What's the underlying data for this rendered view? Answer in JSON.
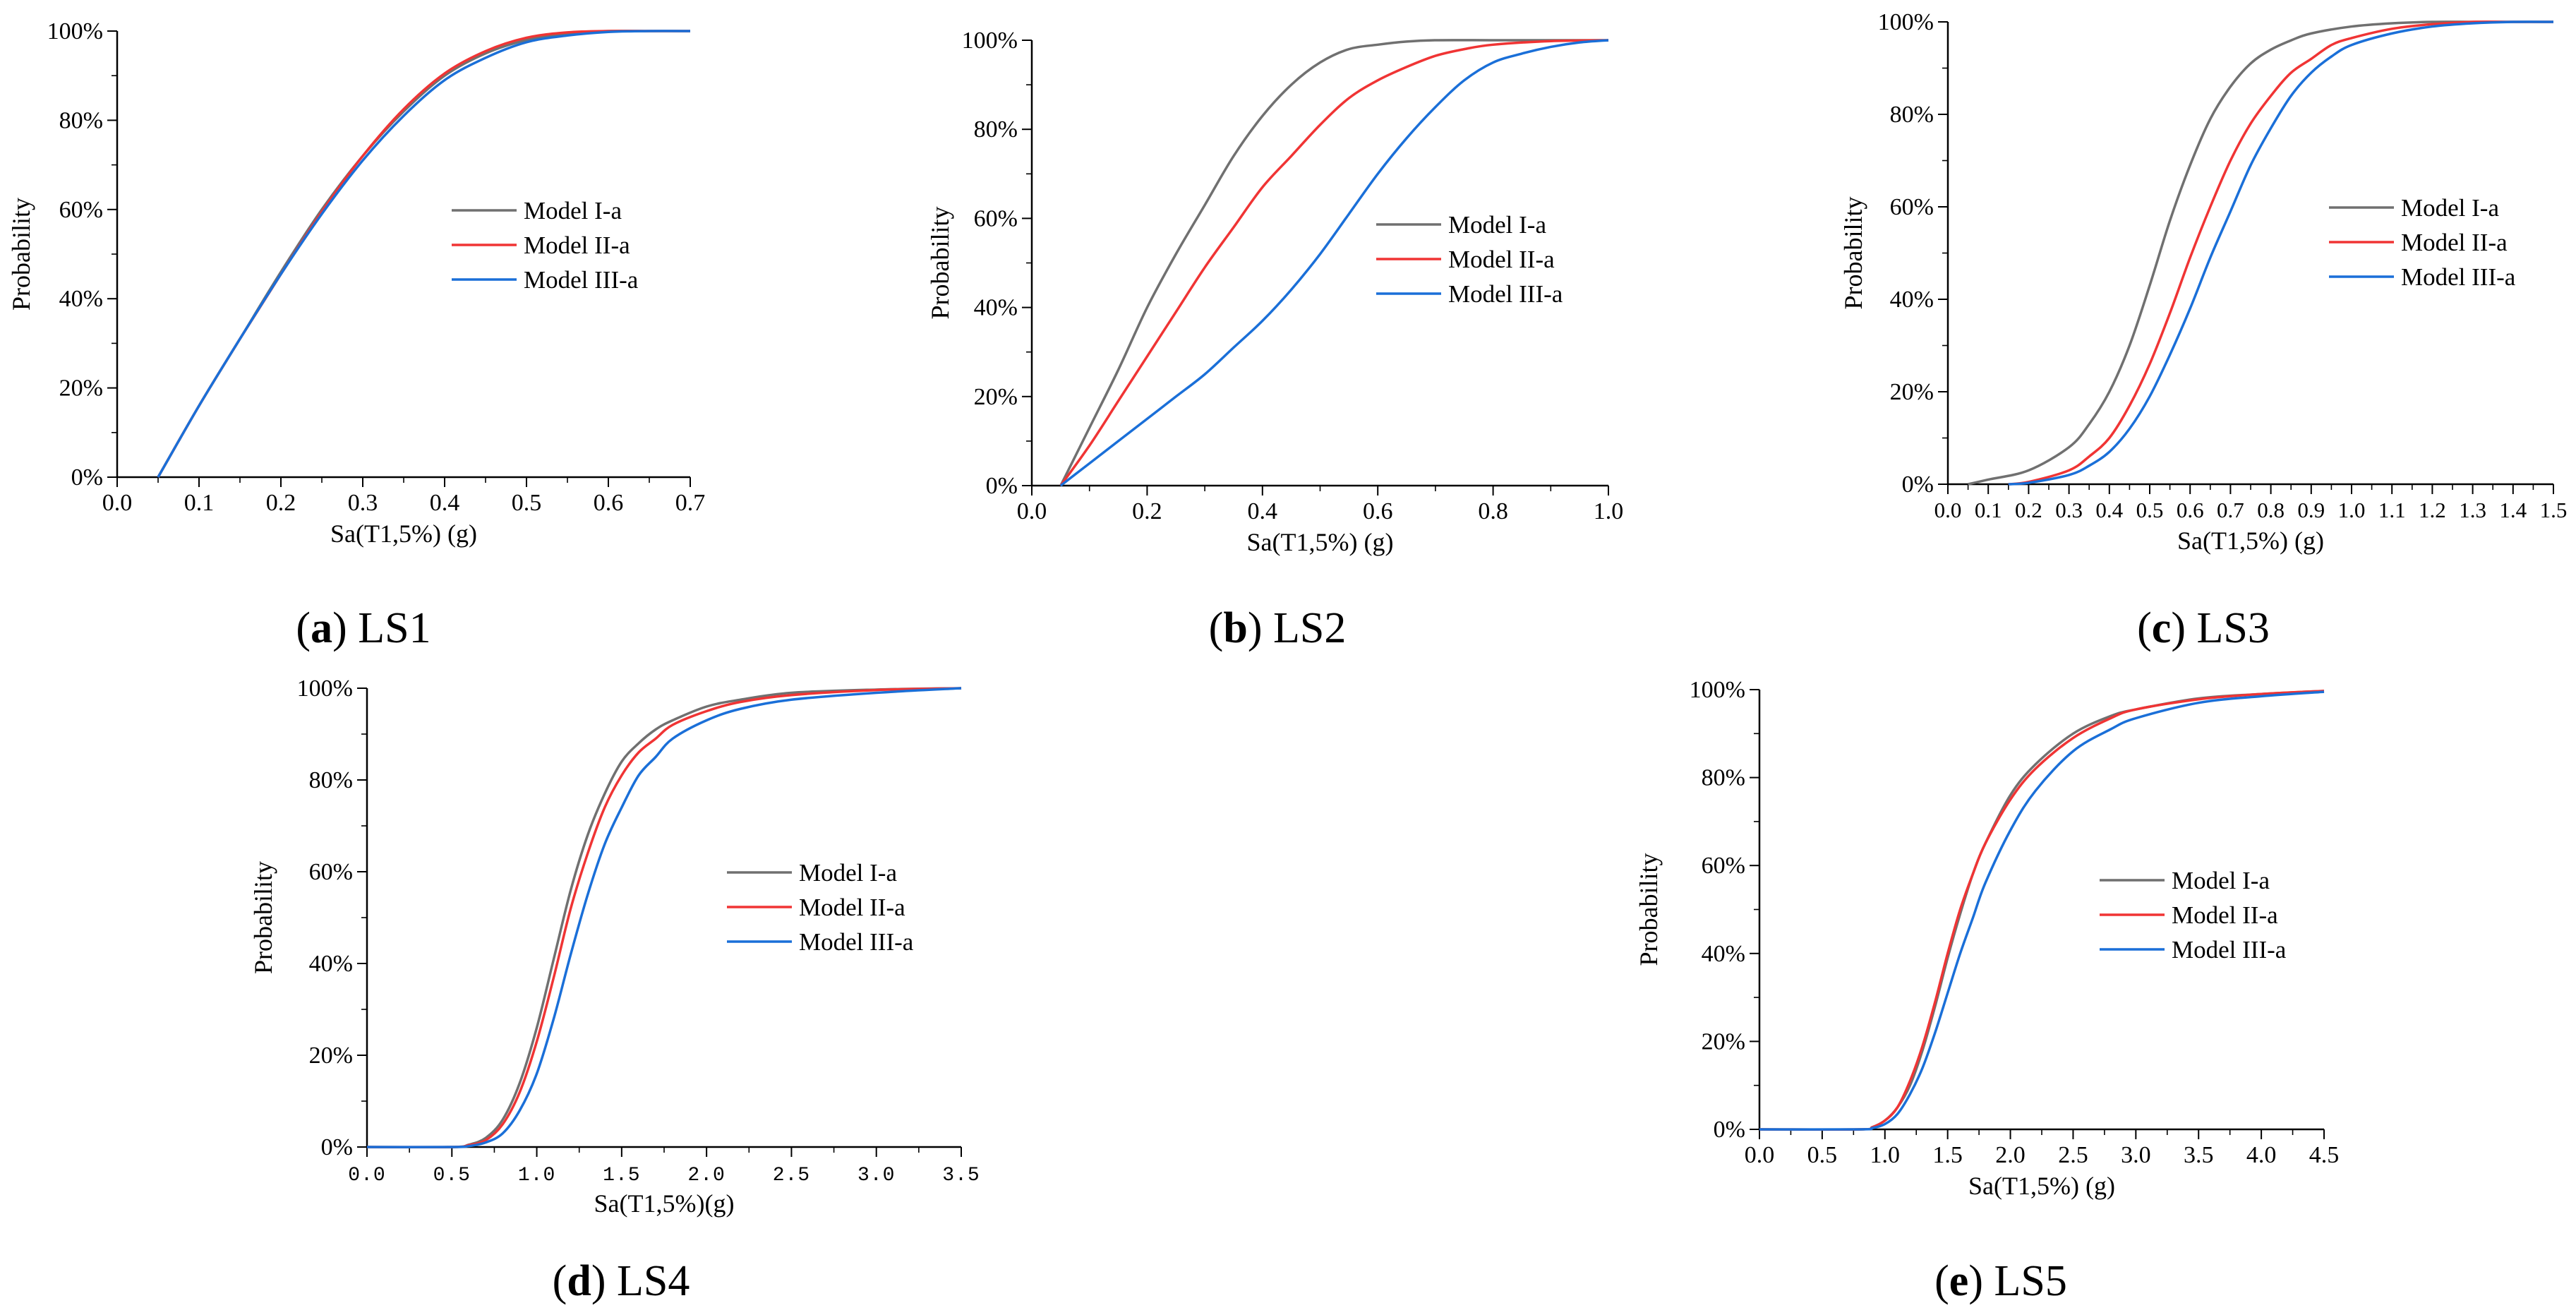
{
  "figure": {
    "colors": {
      "model_i_a": "#707070",
      "model_ii_a": "#f03434",
      "model_iii_a": "#1a6fd8"
    }
  },
  "chart_data": [
    {
      "id": "a",
      "type": "line",
      "caption_letter": "a",
      "caption_text": "LS1",
      "xlabel": "Sa(T1,5%) (g)",
      "ylabel": "Probability",
      "xlim": [
        0,
        0.7
      ],
      "ylim": [
        0,
        1
      ],
      "xticks": [
        "0.0",
        "0.1",
        "0.2",
        "0.3",
        "0.4",
        "0.5",
        "0.6",
        "0.7"
      ],
      "yticks": [
        "0%",
        "20%",
        "40%",
        "60%",
        "80%",
        "100%"
      ],
      "legend_position": "center-right",
      "series": [
        {
          "name": "Model I-a",
          "color_key": "model_i_a",
          "x": [
            0.05,
            0.1,
            0.15,
            0.2,
            0.25,
            0.3,
            0.35,
            0.4,
            0.45,
            0.5,
            0.55,
            0.6,
            0.65,
            0.7
          ],
          "y": [
            0,
            0.16,
            0.31,
            0.46,
            0.6,
            0.72,
            0.82,
            0.9,
            0.95,
            0.98,
            0.995,
            1,
            1,
            1
          ]
        },
        {
          "name": "Model II-a",
          "color_key": "model_ii_a",
          "x": [
            0.05,
            0.1,
            0.15,
            0.2,
            0.25,
            0.3,
            0.35,
            0.4,
            0.45,
            0.5,
            0.55,
            0.6,
            0.65,
            0.7
          ],
          "y": [
            0,
            0.16,
            0.31,
            0.455,
            0.595,
            0.72,
            0.825,
            0.905,
            0.955,
            0.985,
            0.997,
            1,
            1,
            1
          ]
        },
        {
          "name": "Model III-a",
          "color_key": "model_iii_a",
          "x": [
            0.05,
            0.1,
            0.15,
            0.2,
            0.25,
            0.3,
            0.35,
            0.4,
            0.45,
            0.5,
            0.55,
            0.6,
            0.65,
            0.7
          ],
          "y": [
            0,
            0.16,
            0.31,
            0.455,
            0.59,
            0.71,
            0.81,
            0.89,
            0.94,
            0.975,
            0.99,
            0.998,
            1,
            1
          ]
        }
      ]
    },
    {
      "id": "b",
      "type": "line",
      "caption_letter": "b",
      "caption_text": "LS2",
      "xlabel": "Sa(T1,5%) (g)",
      "ylabel": "Probability",
      "xlim": [
        0,
        1.0
      ],
      "ylim": [
        0,
        1
      ],
      "xticks": [
        "0.0",
        "0.2",
        "0.4",
        "0.6",
        "0.8",
        "1.0"
      ],
      "yticks": [
        "0%",
        "20%",
        "40%",
        "60%",
        "80%",
        "100%"
      ],
      "legend_position": "center-right",
      "series": [
        {
          "name": "Model I-a",
          "color_key": "model_i_a",
          "x": [
            0.05,
            0.1,
            0.15,
            0.2,
            0.25,
            0.3,
            0.35,
            0.4,
            0.45,
            0.5,
            0.55,
            0.6,
            0.65,
            0.7,
            0.8,
            0.9,
            1.0
          ],
          "y": [
            0,
            0.13,
            0.26,
            0.4,
            0.52,
            0.63,
            0.74,
            0.83,
            0.9,
            0.95,
            0.98,
            0.99,
            0.997,
            1,
            1,
            1,
            1
          ]
        },
        {
          "name": "Model II-a",
          "color_key": "model_ii_a",
          "x": [
            0.05,
            0.1,
            0.15,
            0.2,
            0.25,
            0.3,
            0.35,
            0.4,
            0.45,
            0.5,
            0.55,
            0.6,
            0.65,
            0.7,
            0.75,
            0.8,
            0.9,
            1.0
          ],
          "y": [
            0,
            0.09,
            0.19,
            0.29,
            0.39,
            0.49,
            0.58,
            0.67,
            0.74,
            0.81,
            0.87,
            0.91,
            0.94,
            0.965,
            0.98,
            0.99,
            0.998,
            1
          ]
        },
        {
          "name": "Model III-a",
          "color_key": "model_iii_a",
          "x": [
            0.05,
            0.1,
            0.15,
            0.2,
            0.25,
            0.3,
            0.35,
            0.4,
            0.45,
            0.5,
            0.55,
            0.6,
            0.65,
            0.7,
            0.75,
            0.8,
            0.85,
            0.9,
            0.95,
            1.0
          ],
          "y": [
            0,
            0.05,
            0.1,
            0.15,
            0.2,
            0.25,
            0.31,
            0.37,
            0.44,
            0.52,
            0.61,
            0.7,
            0.78,
            0.85,
            0.91,
            0.95,
            0.97,
            0.985,
            0.995,
            1
          ]
        }
      ]
    },
    {
      "id": "c",
      "type": "line",
      "caption_letter": "c",
      "caption_text": "LS3",
      "xlabel": "Sa(T1,5%) (g)",
      "ylabel": "Probability",
      "xlim": [
        0,
        1.5
      ],
      "ylim": [
        0,
        1
      ],
      "xticks": [
        "0.0",
        "0.1",
        "0.2",
        "0.3",
        "0.4",
        "0.5",
        "0.6",
        "0.7",
        "0.8",
        "0.9",
        "1.0",
        "1.1",
        "1.2",
        "1.3",
        "1.4",
        "1.5"
      ],
      "extra_xtick_label": "0",
      "yticks": [
        "0%",
        "20%",
        "40%",
        "60%",
        "80%",
        "100%"
      ],
      "legend_position": "center-right",
      "series": [
        {
          "name": "Model I-a",
          "color_key": "model_i_a",
          "x": [
            0.05,
            0.1,
            0.2,
            0.3,
            0.35,
            0.4,
            0.45,
            0.5,
            0.55,
            0.6,
            0.65,
            0.7,
            0.75,
            0.8,
            0.85,
            0.9,
            1.0,
            1.1,
            1.2,
            1.3,
            1.4,
            1.5
          ],
          "y": [
            0,
            0.01,
            0.03,
            0.08,
            0.13,
            0.2,
            0.3,
            0.43,
            0.57,
            0.69,
            0.79,
            0.86,
            0.91,
            0.94,
            0.96,
            0.975,
            0.99,
            0.997,
            1,
            1,
            1,
            1
          ]
        },
        {
          "name": "Model II-a",
          "color_key": "model_ii_a",
          "x": [
            0.15,
            0.2,
            0.3,
            0.35,
            0.4,
            0.45,
            0.5,
            0.55,
            0.6,
            0.65,
            0.7,
            0.75,
            0.8,
            0.85,
            0.9,
            0.95,
            1.0,
            1.1,
            1.2,
            1.3,
            1.4,
            1.5
          ],
          "y": [
            0,
            0.005,
            0.03,
            0.06,
            0.1,
            0.17,
            0.26,
            0.37,
            0.49,
            0.6,
            0.7,
            0.78,
            0.84,
            0.89,
            0.92,
            0.95,
            0.965,
            0.985,
            0.995,
            1,
            1,
            1
          ]
        },
        {
          "name": "Model III-a",
          "color_key": "model_iii_a",
          "x": [
            0.15,
            0.2,
            0.3,
            0.35,
            0.4,
            0.45,
            0.5,
            0.55,
            0.6,
            0.65,
            0.7,
            0.75,
            0.8,
            0.85,
            0.9,
            0.95,
            1.0,
            1.1,
            1.2,
            1.3,
            1.4,
            1.5
          ],
          "y": [
            0,
            0.003,
            0.02,
            0.04,
            0.07,
            0.12,
            0.19,
            0.28,
            0.38,
            0.49,
            0.59,
            0.69,
            0.77,
            0.84,
            0.89,
            0.925,
            0.95,
            0.975,
            0.99,
            0.997,
            1,
            1
          ]
        }
      ]
    },
    {
      "id": "d",
      "type": "line",
      "caption_letter": "d",
      "caption_text": "LS4",
      "xlabel": "Sa(T1,5%)(g)",
      "ylabel": "Probability",
      "xlim": [
        0,
        3.5
      ],
      "ylim": [
        0,
        1
      ],
      "xticks": [
        "0.0",
        "0.5",
        "1.0",
        "1.5",
        "2.0",
        "2.5",
        "3.0",
        "3.5"
      ],
      "yticks": [
        "0%",
        "20%",
        "40%",
        "60%",
        "80%",
        "100%"
      ],
      "legend_position": "center-right",
      "series": [
        {
          "name": "Model I-a",
          "color_key": "model_i_a",
          "x": [
            0,
            0.5,
            0.6,
            0.7,
            0.8,
            0.9,
            1.0,
            1.1,
            1.2,
            1.3,
            1.4,
            1.5,
            1.6,
            1.7,
            1.8,
            2.0,
            2.2,
            2.5,
            3.0,
            3.5
          ],
          "y": [
            0,
            0,
            0.005,
            0.02,
            0.06,
            0.14,
            0.26,
            0.41,
            0.56,
            0.68,
            0.77,
            0.84,
            0.88,
            0.91,
            0.93,
            0.96,
            0.975,
            0.99,
            0.997,
            1
          ]
        },
        {
          "name": "Model II-a",
          "color_key": "model_ii_a",
          "x": [
            0,
            0.5,
            0.6,
            0.7,
            0.8,
            0.9,
            1.0,
            1.1,
            1.2,
            1.3,
            1.4,
            1.5,
            1.6,
            1.7,
            1.8,
            2.0,
            2.2,
            2.5,
            3.0,
            3.5
          ],
          "y": [
            0,
            0,
            0.004,
            0.015,
            0.05,
            0.12,
            0.23,
            0.37,
            0.52,
            0.64,
            0.74,
            0.81,
            0.86,
            0.89,
            0.92,
            0.95,
            0.97,
            0.985,
            0.996,
            1
          ]
        },
        {
          "name": "Model III-a",
          "color_key": "model_iii_a",
          "x": [
            0,
            0.5,
            0.6,
            0.7,
            0.8,
            0.9,
            1.0,
            1.1,
            1.2,
            1.3,
            1.4,
            1.5,
            1.6,
            1.7,
            1.8,
            2.0,
            2.2,
            2.5,
            3.0,
            3.5
          ],
          "y": [
            0,
            0,
            0.002,
            0.01,
            0.03,
            0.08,
            0.16,
            0.28,
            0.42,
            0.55,
            0.66,
            0.74,
            0.81,
            0.85,
            0.89,
            0.93,
            0.955,
            0.975,
            0.99,
            1
          ]
        }
      ]
    },
    {
      "id": "e",
      "type": "line",
      "caption_letter": "e",
      "caption_text": "LS5",
      "xlabel": "Sa(T1,5%) (g)",
      "ylabel": "Probability",
      "xlim": [
        0,
        4.5
      ],
      "ylim": [
        0,
        1
      ],
      "xticks": [
        "0.0",
        "0.5",
        "1.0",
        "1.5",
        "2.0",
        "2.5",
        "3.0",
        "3.5",
        "4.0",
        "4.5"
      ],
      "yticks": [
        "0%",
        "20%",
        "40%",
        "60%",
        "80%",
        "100%"
      ],
      "legend_position": "center-right",
      "series": [
        {
          "name": "Model I-a",
          "color_key": "model_i_a",
          "x": [
            0,
            0.8,
            0.9,
            1.0,
            1.1,
            1.2,
            1.3,
            1.4,
            1.5,
            1.6,
            1.7,
            1.8,
            2.0,
            2.2,
            2.5,
            2.8,
            3.0,
            3.5,
            4.0,
            4.5
          ],
          "y": [
            0,
            0,
            0.005,
            0.02,
            0.05,
            0.1,
            0.18,
            0.28,
            0.39,
            0.49,
            0.58,
            0.65,
            0.76,
            0.83,
            0.9,
            0.94,
            0.955,
            0.98,
            0.99,
            0.997
          ]
        },
        {
          "name": "Model II-a",
          "color_key": "model_ii_a",
          "x": [
            0,
            0.8,
            0.9,
            1.0,
            1.1,
            1.2,
            1.3,
            1.4,
            1.5,
            1.6,
            1.7,
            1.8,
            2.0,
            2.2,
            2.5,
            2.8,
            3.0,
            3.5,
            4.0,
            4.5
          ],
          "y": [
            0,
            0,
            0.005,
            0.02,
            0.05,
            0.11,
            0.19,
            0.29,
            0.4,
            0.5,
            0.58,
            0.65,
            0.75,
            0.82,
            0.89,
            0.935,
            0.955,
            0.978,
            0.99,
            0.997
          ]
        },
        {
          "name": "Model III-a",
          "color_key": "model_iii_a",
          "x": [
            0,
            0.8,
            0.9,
            1.0,
            1.1,
            1.2,
            1.3,
            1.4,
            1.5,
            1.6,
            1.7,
            1.8,
            2.0,
            2.2,
            2.5,
            2.8,
            3.0,
            3.5,
            4.0,
            4.5
          ],
          "y": [
            0,
            0,
            0.003,
            0.012,
            0.035,
            0.08,
            0.14,
            0.22,
            0.31,
            0.4,
            0.48,
            0.56,
            0.68,
            0.77,
            0.86,
            0.91,
            0.935,
            0.97,
            0.985,
            0.995
          ]
        }
      ]
    }
  ]
}
